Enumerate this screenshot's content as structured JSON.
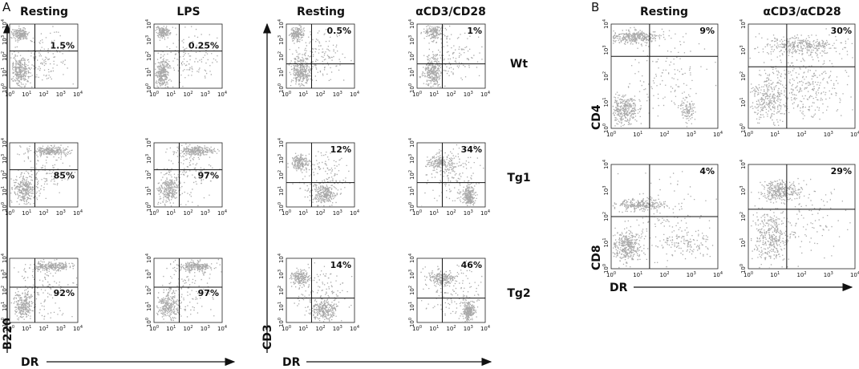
{
  "panel_a": {
    "letter": "A",
    "left": {
      "columns": [
        "Resting",
        "LPS"
      ],
      "y_label": "B220",
      "x_label": "DR",
      "percentages": [
        [
          "1.5%",
          "0.25%"
        ],
        [
          "85%",
          "97%"
        ],
        [
          "92%",
          "97%"
        ]
      ]
    },
    "right": {
      "columns": [
        "Resting",
        "αCD3/CD28"
      ],
      "y_label": "CD3",
      "x_label": "DR",
      "percentages": [
        [
          "0.5%",
          "1%"
        ],
        [
          "12%",
          "34%"
        ],
        [
          "14%",
          "46%"
        ]
      ]
    },
    "rows": [
      "Wt",
      "Tg1",
      "Tg2"
    ]
  },
  "panel_b": {
    "letter": "B",
    "columns": [
      "Resting",
      "αCD3/αCD28"
    ],
    "y_labels": [
      "CD4",
      "CD8"
    ],
    "x_label": "DR",
    "percentages": [
      [
        "9%",
        "30%"
      ],
      [
        "4%",
        "29%"
      ]
    ]
  },
  "axis_tick": {
    "base": "10",
    "exponents": [
      "0",
      "1",
      "2",
      "3",
      "4"
    ]
  }
}
